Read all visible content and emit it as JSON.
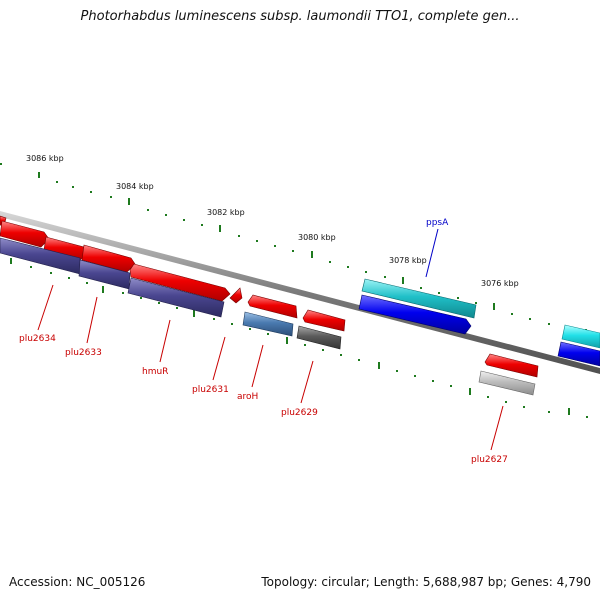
{
  "title": "Photorhabdus luminescens subsp. laumondii TTO1, complete gen...",
  "footer": {
    "accession": "Accession: NC_005126",
    "summary": "Topology: circular; Length: 5,688,987 bp; Genes: 4,790"
  },
  "scale_labels": [
    "3086 kbp",
    "3084 kbp",
    "3082 kbp",
    "3080 kbp",
    "3078 kbp",
    "3076 kbp"
  ],
  "gene_labels": [
    "plu2634",
    "plu2633",
    "hmuR",
    "plu2631",
    "aroH",
    "plu2629",
    "plu2627",
    "ppsA"
  ],
  "colors": {
    "forward_cds": "#e60012",
    "reverse_blue": "#0000e0",
    "reverse_purple": "#46428c",
    "cyan": "#20c0c8",
    "steel": "#4a7ab0",
    "gray_dark": "#5a5a5a",
    "gray_light": "#bdbdbd",
    "backbone": "#808080",
    "ticks": "#1e7a1e",
    "label_red": "#c80000",
    "label_blue": "#0000c8"
  }
}
